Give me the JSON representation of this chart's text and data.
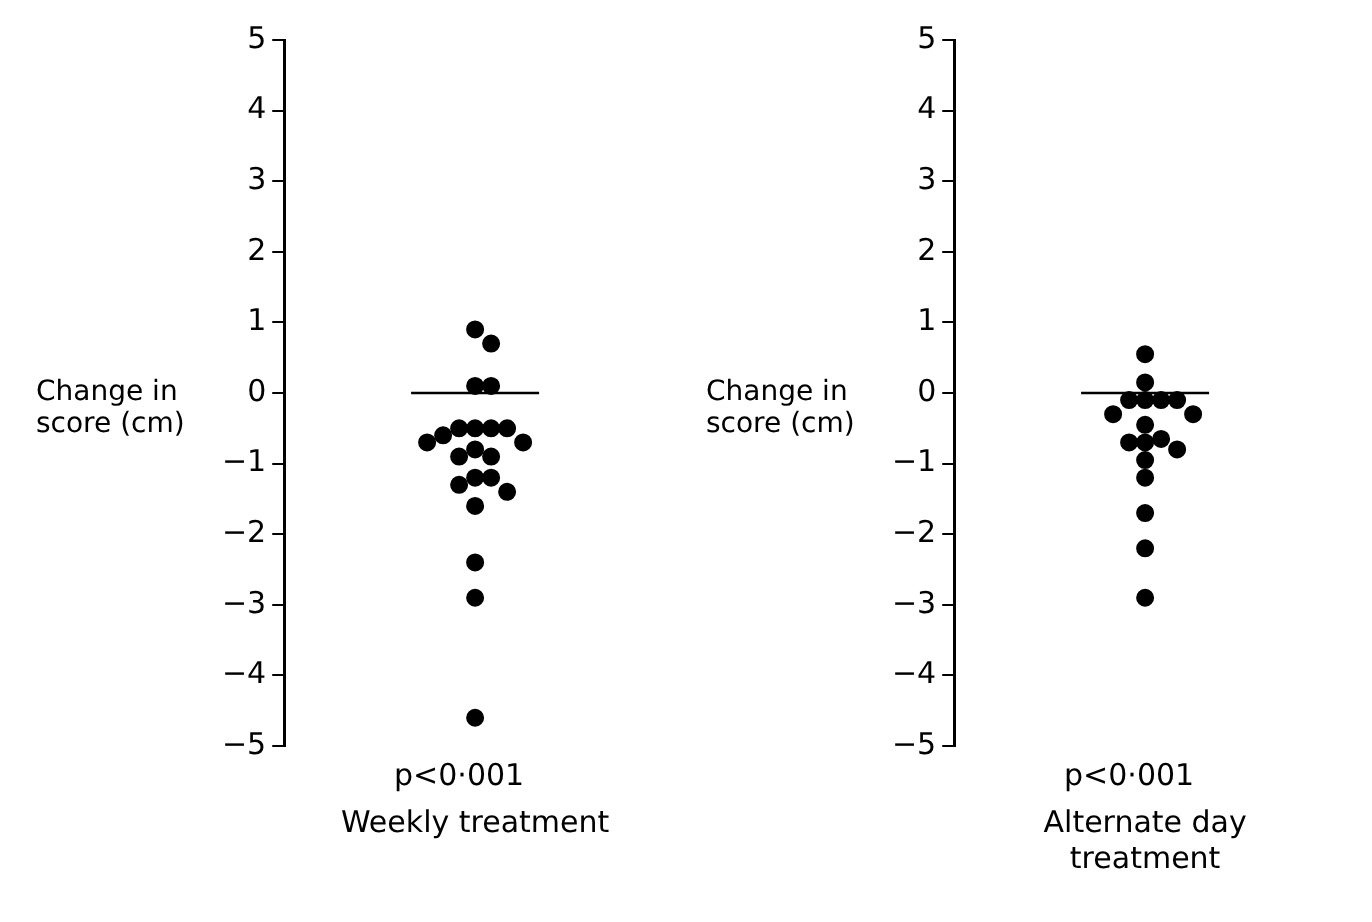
{
  "chart_data": [
    {
      "type": "scatter",
      "ylabel": "Change in score (cm)",
      "categories": [
        "Weekly treatment"
      ],
      "ylim": [
        -5,
        5
      ],
      "yticks": [
        -5,
        -4,
        -3,
        -2,
        -1,
        0,
        1,
        2,
        3,
        4,
        5
      ],
      "grid": false,
      "marker": "circle",
      "annotations": [
        "p<0·001"
      ],
      "ref_lines": [
        {
          "axis": "y",
          "value": 0
        }
      ],
      "series": [
        {
          "color": "#000000",
          "x": [
            "Weekly treatment",
            "Weekly treatment",
            "Weekly treatment",
            "Weekly treatment",
            "Weekly treatment",
            "Weekly treatment",
            "Weekly treatment",
            "Weekly treatment",
            "Weekly treatment",
            "Weekly treatment",
            "Weekly treatment",
            "Weekly treatment",
            "Weekly treatment",
            "Weekly treatment",
            "Weekly treatment",
            "Weekly treatment",
            "Weekly treatment",
            "Weekly treatment",
            "Weekly treatment",
            "Weekly treatment",
            "Weekly treatment",
            "Weekly treatment"
          ],
          "values": [
            0.9,
            0.7,
            0.1,
            0.1,
            -0.5,
            -0.5,
            -0.5,
            -0.5,
            -0.6,
            -0.7,
            -0.7,
            -0.8,
            -0.9,
            -0.9,
            -1.2,
            -1.2,
            -1.3,
            -1.4,
            -1.6,
            -2.4,
            -2.9,
            -4.6
          ]
        }
      ]
    },
    {
      "type": "scatter",
      "ylabel": "Change in score (cm)",
      "categories": [
        "Alternate day treatment"
      ],
      "ylim": [
        -5,
        5
      ],
      "yticks": [
        -5,
        -4,
        -3,
        -2,
        -1,
        0,
        1,
        2,
        3,
        4,
        5
      ],
      "grid": false,
      "marker": "circle",
      "annotations": [
        "p<0·001"
      ],
      "ref_lines": [
        {
          "axis": "y",
          "value": 0
        }
      ],
      "series": [
        {
          "color": "#000000",
          "x": [
            "Alternate day treatment",
            "Alternate day treatment",
            "Alternate day treatment",
            "Alternate day treatment",
            "Alternate day treatment",
            "Alternate day treatment",
            "Alternate day treatment",
            "Alternate day treatment",
            "Alternate day treatment",
            "Alternate day treatment",
            "Alternate day treatment",
            "Alternate day treatment",
            "Alternate day treatment",
            "Alternate day treatment",
            "Alternate day treatment",
            "Alternate day treatment",
            "Alternate day treatment",
            "Alternate day treatment"
          ],
          "values": [
            0.55,
            0.15,
            -0.1,
            -0.1,
            -0.1,
            -0.1,
            -0.3,
            -0.3,
            -0.45,
            -0.65,
            -0.7,
            -0.7,
            -0.8,
            -0.95,
            -1.2,
            -1.7,
            -2.2,
            -2.9
          ]
        }
      ]
    }
  ]
}
